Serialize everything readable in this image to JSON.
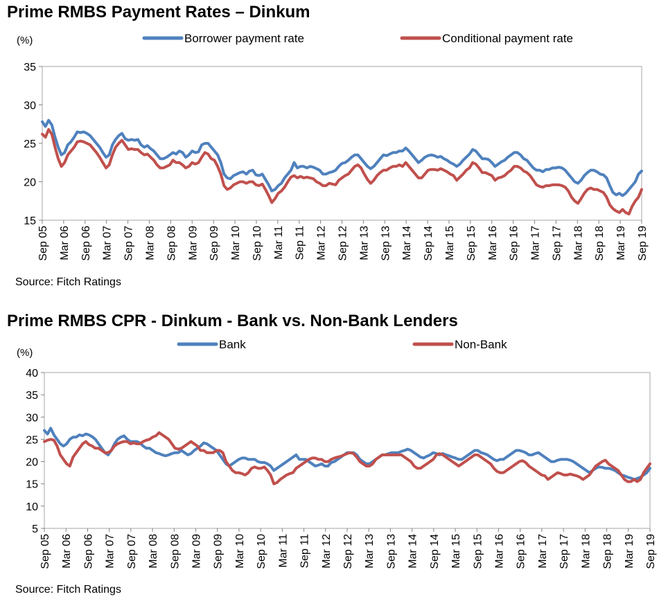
{
  "chart_data": [
    {
      "type": "line",
      "title": "Prime RMBS Payment Rates – Dinkum",
      "ylabel": "(%)",
      "xlabel": "",
      "ylim": [
        15,
        35
      ],
      "yticks": [
        15,
        20,
        25,
        30,
        35
      ],
      "grid": false,
      "legend_position": "top",
      "source": "Source: Fitch Ratings",
      "x_tick_labels": [
        "Sep 05",
        "Mar 06",
        "Sep 06",
        "Mar 07",
        "Sep 07",
        "Mar 08",
        "Sep 08",
        "Mar 09",
        "Sep 09",
        "Mar 10",
        "Sep 10",
        "Mar 11",
        "Sep 11",
        "Mar 12",
        "Sep 12",
        "Mar 13",
        "Sep 13",
        "Mar 14",
        "Sep 14",
        "Mar 15",
        "Sep 15",
        "Mar 16",
        "Sep 16",
        "Mar 17",
        "Sep 17",
        "Mar 18",
        "Sep 18",
        "Mar 19",
        "Sep 19"
      ],
      "series": [
        {
          "name": "Borrower payment rate",
          "color": "#4F81BD",
          "values": [
            27.8,
            27.2,
            28.0,
            27.4,
            25.8,
            24.5,
            23.5,
            23.8,
            24.8,
            25.2,
            25.8,
            26.5,
            26.4,
            26.5,
            26.3,
            26.0,
            25.5,
            25.0,
            24.5,
            23.8,
            23.2,
            23.5,
            24.8,
            25.5,
            26.0,
            26.3,
            25.6,
            25.4,
            25.5,
            25.4,
            25.5,
            24.8,
            24.5,
            24.7,
            24.3,
            24.0,
            23.5,
            23.0,
            23.0,
            23.2,
            23.5,
            23.8,
            23.6,
            24.0,
            23.8,
            23.2,
            23.5,
            24.0,
            23.8,
            23.9,
            24.8,
            25.0,
            25.0,
            24.5,
            24.0,
            23.5,
            22.5,
            21.0,
            20.5,
            20.4,
            20.8,
            21.0,
            21.2,
            21.3,
            21.0,
            21.4,
            21.5,
            20.9,
            20.8,
            21.0,
            20.3,
            19.6,
            18.8,
            19.0,
            19.5,
            19.8,
            20.5,
            21.0,
            21.5,
            22.5,
            21.8,
            22.0,
            22.0,
            21.8,
            22.0,
            21.9,
            21.7,
            21.5,
            21.0,
            21.0,
            21.2,
            21.3,
            21.5,
            22.0,
            22.4,
            22.5,
            22.8,
            23.2,
            23.5,
            23.5,
            23.0,
            22.5,
            22.0,
            21.7,
            22.0,
            22.5,
            23.0,
            23.5,
            23.4,
            23.6,
            23.8,
            23.8,
            24.0,
            24.0,
            24.4,
            24.0,
            23.5,
            23.0,
            22.5,
            22.8,
            23.2,
            23.4,
            23.5,
            23.4,
            23.2,
            23.3,
            23.0,
            22.8,
            22.5,
            22.3,
            22.0,
            22.3,
            22.8,
            23.2,
            23.6,
            24.2,
            24.0,
            23.5,
            23.0,
            23.0,
            22.9,
            22.5,
            22.0,
            22.3,
            22.6,
            22.8,
            23.2,
            23.5,
            23.8,
            23.8,
            23.5,
            23.0,
            22.8,
            22.3,
            21.8,
            21.5,
            21.5,
            21.3,
            21.6,
            21.6,
            21.8,
            21.8,
            21.9,
            21.8,
            21.5,
            21.0,
            20.5,
            20.0,
            19.8,
            20.2,
            20.8,
            21.2,
            21.5,
            21.5,
            21.3,
            21.0,
            20.9,
            20.5,
            19.5,
            18.6,
            18.3,
            18.5,
            18.2,
            18.5,
            19.0,
            19.5,
            20.0,
            21.0,
            21.4
          ]
        },
        {
          "name": "Conditional payment rate",
          "color": "#C0504D",
          "values": [
            26.2,
            25.8,
            26.8,
            26.2,
            24.5,
            23.0,
            22.0,
            22.5,
            23.5,
            24.0,
            24.5,
            25.2,
            25.3,
            25.2,
            25.0,
            24.8,
            24.3,
            23.8,
            23.2,
            22.5,
            21.8,
            22.2,
            23.5,
            24.5,
            25.0,
            25.4,
            24.8,
            24.2,
            24.3,
            24.2,
            24.2,
            23.8,
            23.5,
            23.6,
            23.2,
            22.8,
            22.2,
            21.8,
            21.8,
            22.0,
            22.2,
            22.8,
            22.5,
            22.5,
            22.2,
            21.8,
            22.0,
            22.5,
            22.3,
            22.5,
            23.2,
            23.8,
            23.6,
            23.0,
            22.8,
            22.0,
            21.0,
            19.5,
            19.0,
            19.2,
            19.6,
            19.8,
            20.0,
            20.0,
            19.8,
            20.0,
            20.0,
            19.6,
            19.5,
            19.7,
            19.0,
            18.2,
            17.3,
            17.8,
            18.5,
            18.8,
            19.3,
            20.0,
            20.6,
            20.8,
            20.5,
            20.7,
            20.5,
            20.6,
            20.5,
            20.4,
            20.0,
            19.8,
            19.5,
            19.5,
            19.8,
            19.7,
            19.6,
            20.2,
            20.5,
            20.8,
            21.0,
            21.5,
            22.0,
            22.2,
            21.8,
            21.0,
            20.3,
            19.8,
            20.2,
            20.8,
            21.2,
            21.5,
            21.5,
            21.8,
            22.0,
            22.0,
            22.2,
            22.0,
            22.5,
            22.0,
            21.5,
            21.0,
            20.5,
            20.5,
            21.0,
            21.5,
            21.6,
            21.6,
            21.5,
            21.7,
            21.5,
            21.3,
            21.0,
            20.8,
            20.2,
            20.6,
            21.0,
            21.5,
            21.8,
            22.5,
            22.3,
            21.8,
            21.2,
            21.2,
            21.0,
            20.8,
            20.2,
            20.5,
            20.6,
            20.8,
            21.2,
            21.5,
            22.0,
            22.0,
            21.8,
            21.4,
            21.2,
            20.8,
            20.2,
            19.6,
            19.4,
            19.3,
            19.5,
            19.5,
            19.6,
            19.6,
            19.6,
            19.5,
            19.3,
            18.8,
            18.0,
            17.5,
            17.2,
            17.8,
            18.5,
            19.0,
            19.2,
            19.0,
            19.0,
            18.8,
            18.6,
            18.0,
            17.0,
            16.5,
            16.2,
            16.0,
            16.4,
            16.0,
            15.8,
            16.8,
            17.5,
            18.0,
            19.0
          ]
        }
      ]
    },
    {
      "type": "line",
      "title": "Prime RMBS CPR - Dinkum - Bank vs. Non-Bank Lenders",
      "ylabel": "(%)",
      "xlabel": "",
      "ylim": [
        5,
        40
      ],
      "yticks": [
        5,
        10,
        15,
        20,
        25,
        30,
        35,
        40
      ],
      "grid": false,
      "legend_position": "top",
      "source": "Source: Fitch Ratings",
      "x_tick_labels": [
        "Sep 05",
        "Mar 06",
        "Sep 06",
        "Mar 07",
        "Sep 07",
        "Mar 08",
        "Sep 08",
        "Mar 09",
        "Sep 09",
        "Mar 10",
        "Sep 10",
        "Mar 11",
        "Sep 11",
        "Mar 12",
        "Sep 12",
        "Mar 13",
        "Sep 13",
        "Mar 14",
        "Sep 14",
        "Mar 15",
        "Sep 15",
        "Mar 16",
        "Sep 16",
        "Mar 17",
        "Sep 17",
        "Mar 18",
        "Sep 18",
        "Mar 19",
        "Sep 19"
      ],
      "series": [
        {
          "name": "Bank",
          "color": "#4F81BD",
          "values": [
            27.0,
            26.2,
            27.5,
            26.0,
            25.0,
            24.0,
            23.5,
            24.0,
            25.0,
            25.5,
            25.5,
            26.0,
            25.8,
            26.2,
            26.0,
            25.6,
            25.0,
            24.0,
            23.0,
            22.0,
            21.5,
            22.5,
            24.0,
            25.0,
            25.5,
            25.8,
            25.0,
            24.5,
            24.5,
            24.5,
            24.2,
            23.5,
            23.0,
            23.0,
            22.5,
            22.0,
            21.8,
            21.5,
            21.3,
            21.5,
            21.8,
            22.0,
            22.0,
            22.5,
            22.0,
            21.5,
            21.8,
            22.5,
            23.0,
            23.5,
            24.2,
            24.0,
            23.5,
            23.0,
            22.5,
            21.5,
            20.5,
            19.5,
            19.0,
            19.5,
            20.0,
            20.5,
            20.8,
            20.8,
            20.5,
            20.5,
            20.5,
            20.0,
            19.8,
            19.8,
            19.5,
            19.0,
            18.0,
            18.5,
            19.0,
            19.5,
            20.0,
            20.5,
            21.0,
            21.5,
            20.5,
            20.5,
            20.5,
            20.0,
            19.5,
            19.0,
            19.2,
            19.5,
            19.0,
            19.0,
            19.8,
            20.0,
            20.5,
            21.0,
            21.5,
            22.0,
            22.0,
            22.0,
            21.5,
            20.5,
            20.0,
            19.5,
            19.5,
            20.0,
            20.5,
            21.0,
            21.5,
            21.5,
            21.8,
            22.0,
            22.0,
            22.0,
            22.3,
            22.5,
            22.8,
            22.5,
            22.0,
            21.5,
            21.0,
            20.8,
            21.2,
            21.5,
            22.0,
            21.8,
            21.5,
            21.8,
            21.5,
            21.3,
            21.0,
            20.8,
            20.5,
            20.5,
            21.0,
            21.5,
            22.0,
            22.5,
            22.5,
            22.0,
            21.8,
            21.5,
            21.0,
            20.5,
            20.2,
            20.5,
            20.5,
            21.0,
            21.5,
            22.0,
            22.5,
            22.5,
            22.3,
            22.0,
            21.5,
            21.5,
            21.8,
            22.0,
            21.5,
            21.0,
            20.5,
            20.0,
            20.0,
            20.3,
            20.5,
            20.5,
            20.5,
            20.3,
            20.0,
            19.5,
            19.0,
            18.5,
            18.0,
            17.5,
            18.0,
            18.5,
            18.8,
            18.7,
            18.5,
            18.5,
            18.3,
            18.0,
            17.5,
            17.0,
            16.8,
            16.5,
            16.3,
            16.0,
            16.2,
            16.5,
            17.0,
            17.5,
            18.5
          ]
        },
        {
          "name": "Non-Bank",
          "color": "#C0504D",
          "values": [
            24.5,
            24.8,
            25.0,
            24.8,
            23.5,
            21.5,
            20.5,
            19.5,
            19.0,
            21.0,
            22.0,
            23.0,
            24.0,
            24.5,
            23.8,
            23.5,
            23.0,
            23.0,
            22.5,
            22.0,
            22.0,
            22.5,
            23.5,
            24.0,
            24.3,
            24.5,
            24.5,
            24.0,
            24.2,
            24.0,
            24.0,
            24.5,
            24.8,
            25.0,
            25.5,
            25.8,
            26.5,
            26.0,
            25.5,
            25.0,
            24.0,
            23.0,
            22.8,
            23.0,
            23.5,
            24.0,
            24.5,
            24.0,
            23.5,
            22.5,
            22.5,
            22.0,
            22.0,
            22.0,
            22.5,
            22.5,
            22.0,
            20.0,
            19.0,
            18.0,
            17.5,
            17.5,
            17.3,
            17.0,
            17.5,
            18.5,
            18.8,
            18.5,
            18.5,
            18.8,
            18.0,
            17.0,
            15.0,
            15.3,
            16.0,
            16.5,
            17.0,
            17.3,
            17.5,
            18.5,
            19.0,
            19.5,
            20.0,
            20.5,
            20.8,
            20.8,
            20.5,
            20.5,
            20.0,
            20.0,
            20.5,
            20.8,
            21.0,
            21.2,
            21.5,
            21.8,
            22.0,
            21.8,
            21.0,
            20.0,
            19.5,
            19.0,
            19.0,
            19.5,
            20.5,
            21.0,
            21.5,
            21.5,
            21.5,
            21.5,
            21.5,
            21.5,
            21.5,
            21.0,
            20.5,
            20.0,
            19.0,
            18.5,
            18.5,
            19.0,
            19.5,
            20.0,
            20.5,
            21.5,
            21.8,
            21.5,
            21.0,
            20.5,
            20.0,
            19.5,
            19.0,
            19.5,
            20.0,
            20.5,
            21.0,
            21.5,
            21.5,
            21.0,
            20.5,
            20.0,
            19.5,
            18.5,
            17.8,
            17.5,
            17.5,
            18.0,
            18.5,
            19.0,
            19.5,
            20.0,
            20.2,
            19.8,
            19.0,
            18.5,
            18.0,
            17.5,
            17.0,
            16.8,
            16.0,
            16.5,
            17.0,
            17.5,
            17.3,
            17.0,
            17.0,
            17.2,
            17.0,
            16.8,
            16.5,
            16.0,
            16.5,
            17.0,
            18.0,
            19.0,
            19.5,
            20.0,
            20.3,
            19.5,
            19.0,
            18.5,
            18.0,
            17.0,
            16.0,
            15.5,
            15.5,
            16.0,
            15.5,
            16.0,
            17.5,
            18.5,
            19.5
          ]
        }
      ]
    }
  ]
}
